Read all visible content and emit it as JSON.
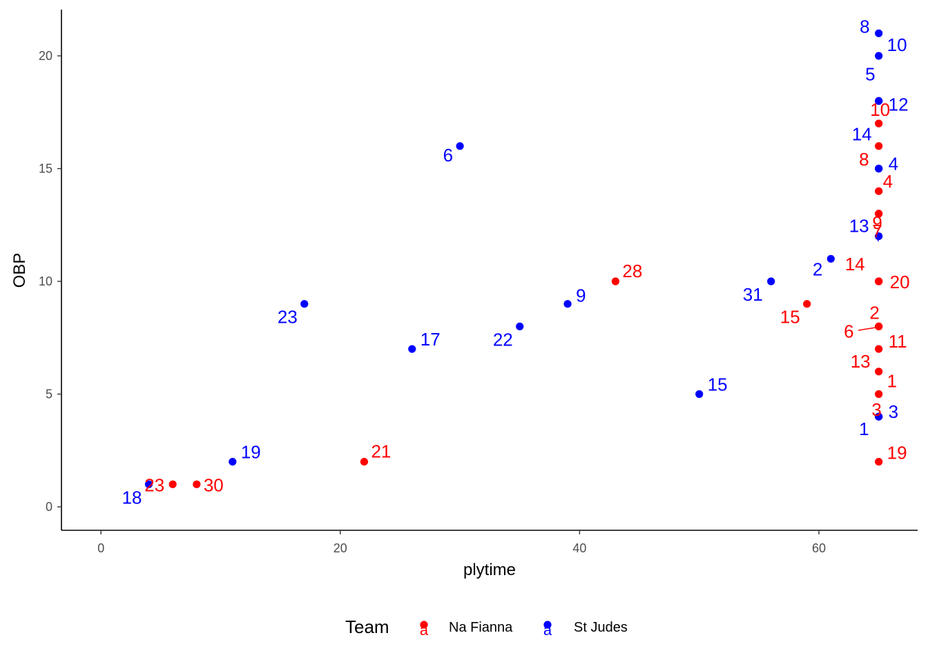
{
  "chart_data": {
    "type": "scatter",
    "xlabel": "plytime",
    "ylabel": "OBP",
    "xlim": [
      -3.5,
      68.5
    ],
    "ylim": [
      -1,
      22
    ],
    "xticks": [
      0,
      20,
      40,
      60
    ],
    "yticks": [
      0,
      5,
      10,
      15,
      20
    ],
    "grid": false,
    "legend": {
      "title": "Team",
      "position": "bottom",
      "key_glyph": "a",
      "entries": [
        {
          "name": "Na Fianna",
          "color": "#ff0000"
        },
        {
          "name": "St Judes",
          "color": "#0000ff"
        }
      ]
    },
    "series": [
      {
        "name": "Na Fianna",
        "color": "#ff0000",
        "points": [
          {
            "x": 6,
            "y": 1,
            "label": "23"
          },
          {
            "x": 8,
            "y": 1,
            "label": "30"
          },
          {
            "x": 22,
            "y": 2,
            "label": "21"
          },
          {
            "x": 43,
            "y": 10,
            "label": "28"
          },
          {
            "x": 59,
            "y": 9,
            "label": "15"
          },
          {
            "x": 65,
            "y": 17,
            "label": "10"
          },
          {
            "x": 65,
            "y": 16,
            "label": "8"
          },
          {
            "x": 65,
            "y": 14,
            "label": "4"
          },
          {
            "x": 65,
            "y": 13,
            "label": "9"
          },
          {
            "x": 65,
            "y": 13,
            "label": "7"
          },
          {
            "x": 65,
            "y": 10,
            "label": "14"
          },
          {
            "x": 65,
            "y": 10,
            "label": "20"
          },
          {
            "x": 65,
            "y": 8,
            "label": "2"
          },
          {
            "x": 65,
            "y": 8,
            "label": "6"
          },
          {
            "x": 65,
            "y": 7,
            "label": "11"
          },
          {
            "x": 65,
            "y": 6,
            "label": "13"
          },
          {
            "x": 65,
            "y": 5,
            "label": "1"
          },
          {
            "x": 65,
            "y": 4,
            "label": "3"
          },
          {
            "x": 65,
            "y": 2,
            "label": "19"
          }
        ]
      },
      {
        "name": "St Judes",
        "color": "#0000ff",
        "points": [
          {
            "x": 4,
            "y": 1,
            "label": "18"
          },
          {
            "x": 11,
            "y": 2,
            "label": "19"
          },
          {
            "x": 17,
            "y": 9,
            "label": "23"
          },
          {
            "x": 26,
            "y": 7,
            "label": "17"
          },
          {
            "x": 30,
            "y": 16,
            "label": "6"
          },
          {
            "x": 35,
            "y": 8,
            "label": "22"
          },
          {
            "x": 39,
            "y": 9,
            "label": "9"
          },
          {
            "x": 50,
            "y": 5,
            "label": "15"
          },
          {
            "x": 56,
            "y": 10,
            "label": "31"
          },
          {
            "x": 61,
            "y": 11,
            "label": "2"
          },
          {
            "x": 65,
            "y": 21,
            "label": "8"
          },
          {
            "x": 65,
            "y": 20,
            "label": "10"
          },
          {
            "x": 65,
            "y": 18,
            "label": "5"
          },
          {
            "x": 65,
            "y": 18,
            "label": "12"
          },
          {
            "x": 65,
            "y": 15,
            "label": "14"
          },
          {
            "x": 65,
            "y": 15,
            "label": "4"
          },
          {
            "x": 65,
            "y": 12,
            "label": "13"
          },
          {
            "x": 65,
            "y": 4,
            "label": "3"
          },
          {
            "x": 65,
            "y": 4,
            "label": "1"
          }
        ]
      }
    ]
  }
}
